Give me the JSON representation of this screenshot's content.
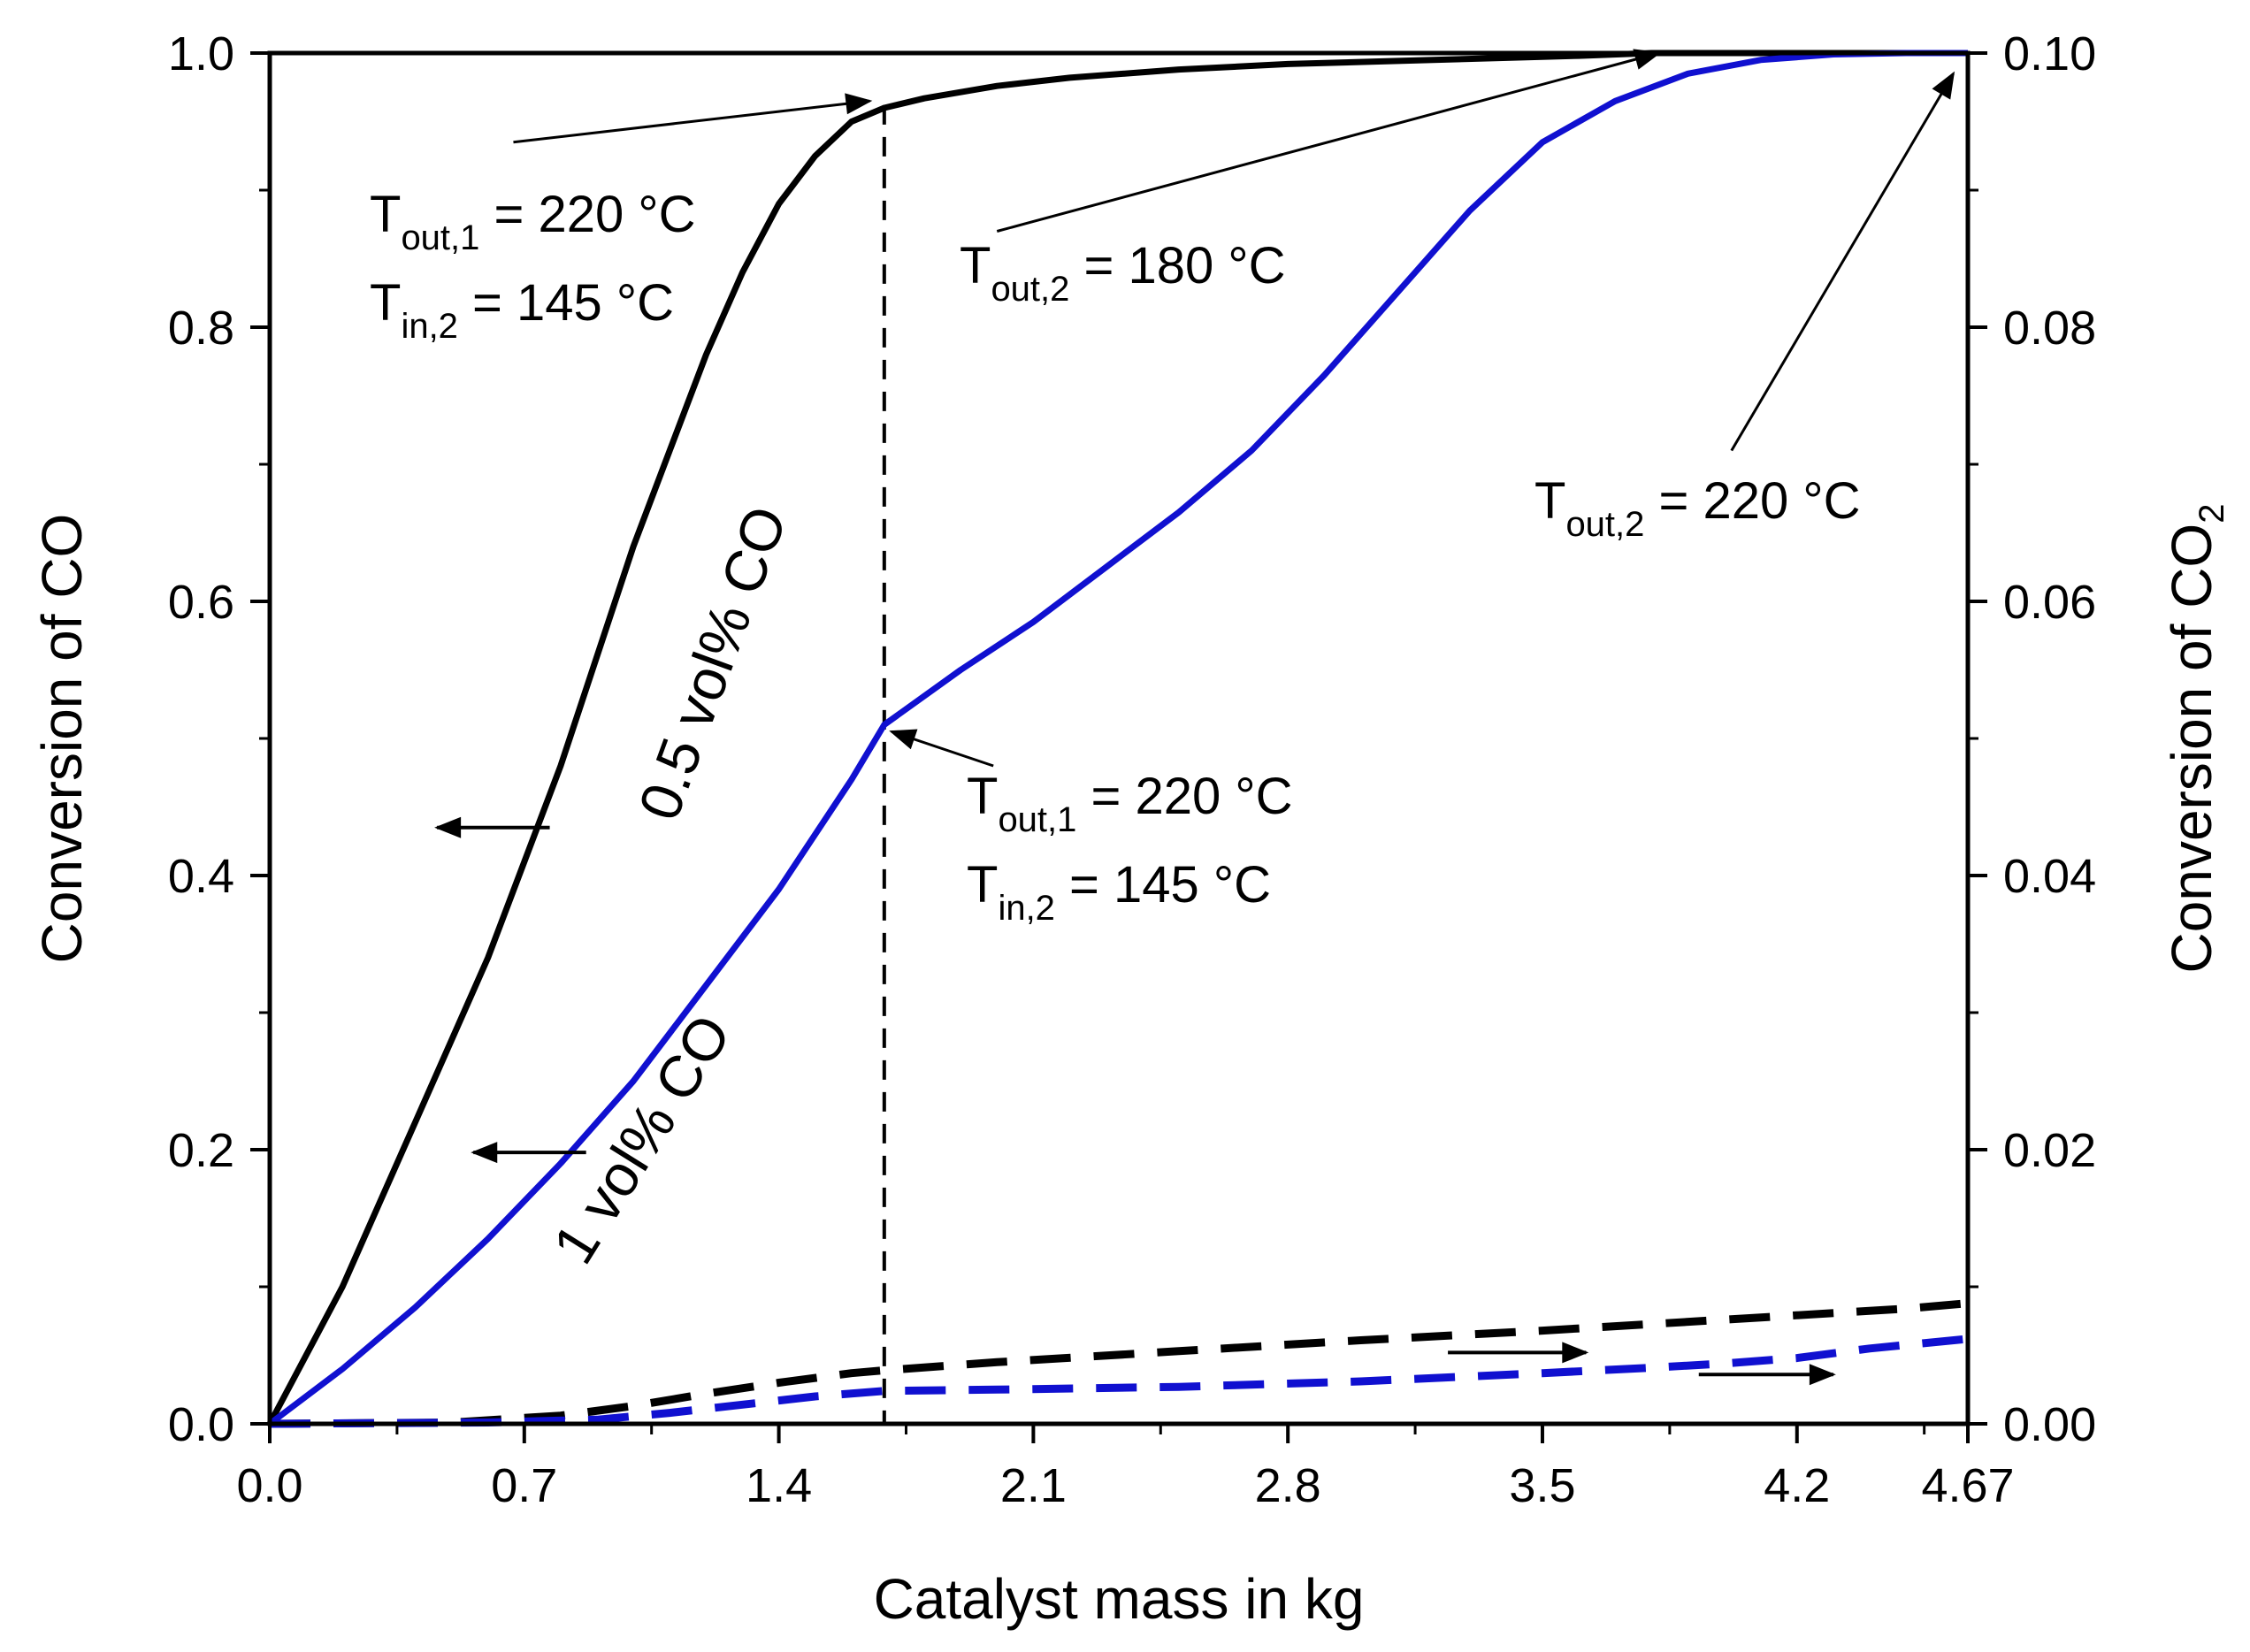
{
  "chart_data": {
    "type": "line",
    "xlabel": "Catalyst mass in kg",
    "ylabel_left": "Conversion of CO",
    "ylabel_right": {
      "main": "Conversion of CO",
      "sub": "2"
    },
    "xlim": [
      0,
      4.67
    ],
    "ylim_left": [
      0,
      1.0
    ],
    "ylim_right": [
      0,
      0.1
    ],
    "x_ticks": [
      "0.0",
      "0.7",
      "1.4",
      "2.1",
      "2.8",
      "3.5",
      "4.2",
      "4.67"
    ],
    "x_tick_values": [
      0,
      0.7,
      1.4,
      2.1,
      2.8,
      3.5,
      4.2,
      4.67
    ],
    "y_left_ticks": [
      "0.0",
      "0.2",
      "0.4",
      "0.6",
      "0.8",
      "1.0"
    ],
    "y_left_tick_values": [
      0,
      0.2,
      0.4,
      0.6,
      0.8,
      1.0
    ],
    "y_right_ticks": [
      "0.00",
      "0.02",
      "0.04",
      "0.06",
      "0.08",
      "0.10"
    ],
    "y_right_tick_values": [
      0,
      0.02,
      0.04,
      0.06,
      0.08,
      0.1
    ],
    "grid": false,
    "legend": "none",
    "vertical_line_x": 1.69,
    "series": [
      {
        "axis": "left",
        "color": "#000000",
        "style": "solid",
        "x": [
          0,
          0.1,
          0.2,
          0.3,
          0.4,
          0.5,
          0.6,
          0.7,
          0.8,
          0.9,
          1.0,
          1.1,
          1.2,
          1.3,
          1.4,
          1.5,
          1.6,
          1.69,
          1.8,
          2.0,
          2.2,
          2.5,
          2.8,
          3.2,
          3.6,
          3.8,
          4.2,
          4.67
        ],
        "y": [
          0,
          0.05,
          0.1,
          0.16,
          0.22,
          0.28,
          0.34,
          0.41,
          0.48,
          0.56,
          0.64,
          0.71,
          0.78,
          0.84,
          0.89,
          0.925,
          0.95,
          0.96,
          0.967,
          0.976,
          0.982,
          0.988,
          0.992,
          0.995,
          0.998,
          1.0,
          1.0,
          1.0
        ]
      },
      {
        "axis": "left",
        "color": "#1010d0",
        "style": "solid",
        "x": [
          0,
          0.2,
          0.4,
          0.6,
          0.8,
          1.0,
          1.2,
          1.4,
          1.6,
          1.69,
          1.9,
          2.1,
          2.3,
          2.5,
          2.7,
          2.9,
          3.1,
          3.3,
          3.5,
          3.7,
          3.9,
          4.1,
          4.3,
          4.5,
          4.67
        ],
        "y": [
          0,
          0.04,
          0.085,
          0.135,
          0.19,
          0.25,
          0.32,
          0.39,
          0.47,
          0.51,
          0.55,
          0.585,
          0.625,
          0.665,
          0.71,
          0.765,
          0.825,
          0.885,
          0.935,
          0.965,
          0.985,
          0.995,
          0.999,
          1.0,
          1.0
        ]
      },
      {
        "axis": "right",
        "color": "#000000",
        "style": "dashed",
        "x": [
          0,
          0.5,
          0.8,
          1.0,
          1.2,
          1.4,
          1.6,
          1.69,
          2.0,
          2.5,
          3.0,
          3.5,
          4.0,
          4.5,
          4.67
        ],
        "y": [
          0,
          0.0001,
          0.0006,
          0.0013,
          0.0022,
          0.003,
          0.0037,
          0.0039,
          0.0045,
          0.0053,
          0.0061,
          0.0068,
          0.0076,
          0.0084,
          0.0088
        ]
      },
      {
        "axis": "right",
        "color": "#1010d0",
        "style": "dashed",
        "x": [
          0,
          0.6,
          0.9,
          1.1,
          1.3,
          1.5,
          1.69,
          2.0,
          2.5,
          3.0,
          3.5,
          3.8,
          4.0,
          4.2,
          4.4,
          4.67
        ],
        "y": [
          0,
          0.0001,
          0.0003,
          0.0008,
          0.0014,
          0.002,
          0.0024,
          0.0025,
          0.0027,
          0.0031,
          0.0037,
          0.0041,
          0.0044,
          0.0048,
          0.0055,
          0.0062
        ]
      }
    ],
    "curve_labels": [
      {
        "text": "0.5 vol% CO",
        "x": 1.27,
        "y": 0.55,
        "angle": -70
      },
      {
        "text": "1 vol% CO",
        "x": 1.07,
        "y": 0.2,
        "angle": -58
      }
    ],
    "annotations": {
      "a1": {
        "line1_main": "T",
        "line1_sub": "out,1",
        "line1_rest": " = 220 °C",
        "line2_main": "T",
        "line2_sub": "in,2",
        "line2_rest": "  = 145 °C"
      },
      "a2": {
        "line1_main": "T",
        "line1_sub": "out,2",
        "line1_rest": " = 180 °C"
      },
      "a3": {
        "line1_main": "T",
        "line1_sub": "out,2",
        "line1_rest": " = 220 °C"
      },
      "a4": {
        "line1_main": "T",
        "line1_sub": "out,1",
        "line1_rest": " = 220 °C",
        "line2_main": "T",
        "line2_sub": "in,2",
        "line2_rest": "  = 145 °C"
      }
    },
    "pointer_arrows": [
      {
        "from": [
          0.67,
          0.935
        ],
        "to": [
          1.65,
          0.965
        ]
      },
      {
        "from": [
          2.0,
          0.87
        ],
        "to": [
          3.82,
          1.0
        ]
      },
      {
        "from": [
          4.02,
          0.71
        ],
        "to": [
          4.63,
          0.985
        ]
      },
      {
        "from": [
          1.99,
          0.48
        ],
        "to": [
          1.71,
          0.505
        ]
      }
    ],
    "axis_arrows": [
      {
        "axis": "left",
        "from": [
          0.77,
          0.435
        ],
        "to": [
          0.46,
          0.435
        ]
      },
      {
        "axis": "left",
        "from": [
          0.87,
          0.198
        ],
        "to": [
          0.56,
          0.198
        ]
      },
      {
        "axis": "right",
        "from": [
          3.24,
          0.0052
        ],
        "to": [
          3.62,
          0.0052
        ]
      },
      {
        "axis": "right",
        "from": [
          3.93,
          0.0036
        ],
        "to": [
          4.3,
          0.0036
        ]
      }
    ]
  }
}
